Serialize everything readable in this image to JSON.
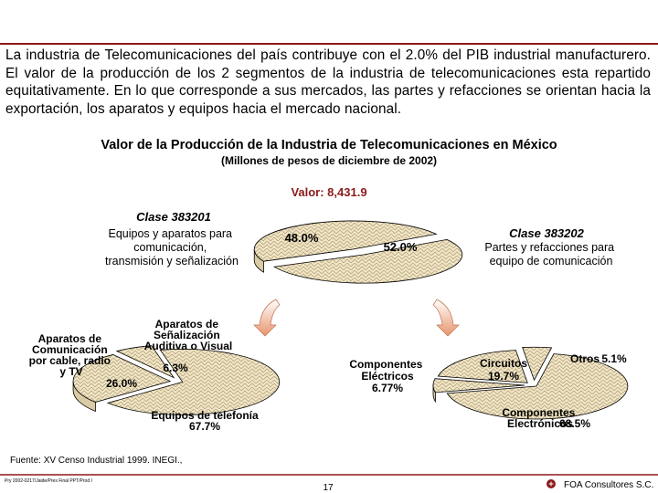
{
  "intro_text": "La industria de Telecomunicaciones del país contribuye con el 2.0% del PIB industrial manufacturero. El valor de la producción de los 2 segmentos de la industria de telecomunicaciones esta repartido equitativamente. En lo que corresponde a sus mercados, las partes y refacciones se orientan hacia la exportación, los aparatos y equipos hacia el mercado nacional.",
  "source": "Fuente: XV Censo Industrial 1999. INEGI.,",
  "file_path": "Pry 2002-0217/Jaide/Pres Final PPT/Prod I",
  "page_number": "17",
  "company": "FOA Consultores S.C.",
  "colors": {
    "accent": "#8b1a1a",
    "pie_fill": "#f0e6c8",
    "pie_hatch": "#b8a47a",
    "arrow": "#e8956c"
  },
  "chart_data": [
    {
      "type": "pie",
      "title": "Valor de la Producción de la Industria de Telecomunicaciones en México",
      "subtitle": "(Millones de pesos de diciembre de 2002)",
      "total_label": "Valor: 8,431.9",
      "slices": [
        {
          "class_label": "Clase 383201",
          "description": "Equipos y aparatos para comunicación, transmisión y señalización",
          "value_label": "48.0%",
          "value": 48.0
        },
        {
          "class_label": "Clase 383202",
          "description": "Partes y refacciones para equipo de comunicación",
          "value_label": "52.0%",
          "value": 52.0
        }
      ]
    },
    {
      "type": "pie",
      "slices": [
        {
          "name": "Aparatos de Comunicación por cable, radio y TV",
          "value_label": "26.0%",
          "value": 26.0
        },
        {
          "name": "Aparatos de Señalización Auditiva o Visual",
          "value_label": "6.3%",
          "value": 6.3
        },
        {
          "name": "Equipos de telefonía",
          "value_label": "67.7%",
          "value": 67.7
        }
      ]
    },
    {
      "type": "pie",
      "slices": [
        {
          "name": "Componentes Eléctricos",
          "value_label": "6.77%",
          "value": 6.77
        },
        {
          "name": "Circuitos",
          "value_label": "19.7%",
          "value": 19.7
        },
        {
          "name": "Otros",
          "value_label": "5.1%",
          "value": 5.1
        },
        {
          "name": "Componentes Electrónicos",
          "value_label": "68.5%",
          "value": 68.5
        }
      ]
    }
  ]
}
